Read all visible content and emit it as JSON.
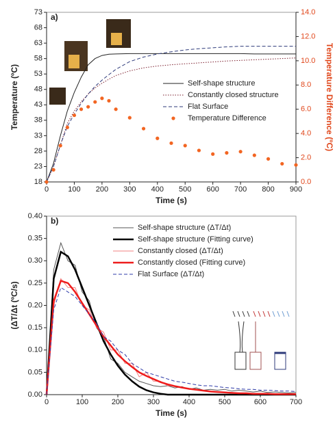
{
  "chart_data": [
    {
      "type": "line",
      "label": "a)",
      "xlabel": "Time (s)",
      "ylabel": "Temperature (ºC)",
      "y2label": "Temperature Difference (ºC)",
      "y2color": "#e0461a",
      "x": [
        0,
        25,
        50,
        75,
        100,
        125,
        150,
        175,
        200,
        225,
        250,
        300,
        350,
        400,
        450,
        500,
        550,
        600,
        650,
        700,
        750,
        800,
        850,
        900
      ],
      "xlim": [
        0,
        900
      ],
      "xticks": [
        0,
        100,
        200,
        300,
        400,
        500,
        600,
        700,
        800,
        900
      ],
      "ylim": [
        18,
        73
      ],
      "yticks": [
        18,
        23,
        28,
        33,
        38,
        43,
        48,
        53,
        58,
        63,
        68,
        73
      ],
      "y2lim": [
        0,
        14
      ],
      "y2ticks": [
        {
          "value": 0,
          "label": "0.0"
        },
        {
          "value": 2,
          "label": "2.0"
        },
        {
          "value": 4,
          "label": "4.0"
        },
        {
          "value": 6,
          "label": "6.0"
        },
        {
          "value": 8,
          "label": "8.0"
        },
        {
          "value": 10,
          "label": "10.0"
        },
        {
          "value": 12,
          "label": "12.0"
        },
        {
          "value": 14,
          "label": "14.0"
        }
      ],
      "series": [
        {
          "name": "Self-shape structure",
          "color": "#222222",
          "style": "solid",
          "width": 1,
          "values": [
            18,
            24,
            33,
            41,
            47,
            52,
            56,
            58,
            59,
            59.4,
            59.5,
            59.6,
            59.6,
            59.6,
            59.6,
            59.6,
            59.6,
            59.6,
            59.6,
            59.6,
            59.5,
            59.5,
            59.5,
            59.5
          ]
        },
        {
          "name": "Constantly closed structure",
          "color": "#7a1b2a",
          "style": "dotted",
          "width": 1,
          "values": [
            18,
            23,
            30,
            37,
            41,
            44,
            46.5,
            48.5,
            50,
            51.3,
            52.5,
            54,
            55,
            55.6,
            56,
            56.3,
            56.6,
            56.9,
            57.2,
            57.4,
            57.6,
            57.8,
            58,
            58.2
          ]
        },
        {
          "name": "Flat Surface",
          "color": "#2d3a7a",
          "style": "dashed",
          "width": 1,
          "values": [
            18,
            23,
            30,
            36,
            40,
            43.5,
            46.5,
            49,
            51,
            52.8,
            54.5,
            57,
            58.5,
            59.5,
            60.2,
            60.8,
            61.2,
            61.5,
            61.8,
            62,
            62,
            62,
            62,
            62
          ]
        },
        {
          "name": "Temperature Difference",
          "color": "#f26522",
          "style": "points",
          "axis": "y2",
          "values": [
            0,
            1.0,
            3.0,
            4.5,
            5.5,
            6.0,
            6.2,
            6.6,
            6.9,
            6.7,
            6.0,
            5.3,
            4.4,
            3.6,
            3.2,
            3.0,
            2.6,
            2.3,
            2.4,
            2.5,
            2.2,
            1.9,
            1.5,
            1.4
          ]
        }
      ]
    },
    {
      "type": "line",
      "label": "b)",
      "xlabel": "Time (s)",
      "ylabel": "(ΔT/Δt  (ºC/s)",
      "x": [
        0,
        20,
        40,
        60,
        80,
        100,
        120,
        140,
        160,
        180,
        200,
        220,
        240,
        260,
        280,
        300,
        320,
        340,
        360,
        380,
        400,
        420,
        440,
        460,
        480,
        500,
        520,
        540,
        560,
        580,
        600,
        620,
        640,
        660,
        680,
        700
      ],
      "xlim": [
        0,
        700
      ],
      "xticks": [
        0,
        100,
        200,
        300,
        400,
        500,
        600,
        700
      ],
      "ylim": [
        0,
        0.4
      ],
      "yticks": [
        {
          "value": 0,
          "label": "0.00"
        },
        {
          "value": 0.05,
          "label": "0.05"
        },
        {
          "value": 0.1,
          "label": "0.10"
        },
        {
          "value": 0.15,
          "label": "0.15"
        },
        {
          "value": 0.2,
          "label": "0.20"
        },
        {
          "value": 0.25,
          "label": "0.25"
        },
        {
          "value": 0.3,
          "label": "0.30"
        },
        {
          "value": 0.35,
          "label": "0.35"
        },
        {
          "value": 0.4,
          "label": "0.40"
        }
      ],
      "series": [
        {
          "name": "Self-shape structure (ΔT/Δt)",
          "color": "#555555",
          "style": "solid",
          "width": 1,
          "values": [
            0,
            0.28,
            0.34,
            0.3,
            0.29,
            0.23,
            0.21,
            0.15,
            0.13,
            0.08,
            0.07,
            0.05,
            0.04,
            0.03,
            0.025,
            0.02,
            0.018,
            0.02,
            0.015,
            0.018,
            0.012,
            0.015,
            0.01,
            0.012,
            0.01,
            0.012,
            0.008,
            0.01,
            0.008,
            0.006,
            0.008,
            0.005,
            0.006,
            0.005,
            0.004,
            0.005
          ]
        },
        {
          "name": "Self-shape structure (Fitting curve)",
          "color": "#000000",
          "style": "solid",
          "width": 2.5,
          "values": [
            0,
            0.26,
            0.32,
            0.31,
            0.28,
            0.24,
            0.2,
            0.16,
            0.12,
            0.09,
            0.065,
            0.045,
            0.03,
            0.018,
            0.01,
            0.005,
            0.002,
            0,
            0,
            0,
            0,
            0,
            0,
            0,
            0,
            0,
            0,
            0,
            0,
            0,
            0,
            0,
            0,
            0,
            0,
            0
          ]
        },
        {
          "name": "Constantly closed (ΔT/Δt)",
          "color": "#f08080",
          "style": "solid",
          "width": 1,
          "values": [
            0,
            0.2,
            0.26,
            0.24,
            0.24,
            0.2,
            0.19,
            0.15,
            0.14,
            0.1,
            0.1,
            0.07,
            0.07,
            0.04,
            0.05,
            0.03,
            0.03,
            0.02,
            0.02,
            0.015,
            0.013,
            0.01,
            0.01,
            0.008,
            0.006,
            0.005,
            0.004,
            0.004,
            0.003,
            0.002,
            0.002,
            0.002,
            0.001,
            0.001,
            0.001,
            0.001
          ]
        },
        {
          "name": "Constantly closed (Fitting curve)",
          "color": "#ee1c1c",
          "style": "solid",
          "width": 2.5,
          "values": [
            0,
            0.21,
            0.255,
            0.25,
            0.23,
            0.205,
            0.18,
            0.155,
            0.13,
            0.11,
            0.09,
            0.075,
            0.062,
            0.05,
            0.042,
            0.035,
            0.028,
            0.023,
            0.019,
            0.016,
            0.013,
            0.011,
            0.009,
            0.007,
            0.006,
            0.005,
            0.004,
            0.003,
            0.003,
            0.002,
            0.002,
            0.002,
            0.001,
            0.001,
            0.001,
            0.001
          ]
        },
        {
          "name": "Flat Surface (ΔT/Δt)",
          "color": "#2d3aa8",
          "style": "dashed",
          "width": 1,
          "values": [
            0,
            0.19,
            0.24,
            0.23,
            0.22,
            0.2,
            0.18,
            0.16,
            0.13,
            0.12,
            0.1,
            0.09,
            0.07,
            0.06,
            0.05,
            0.045,
            0.04,
            0.035,
            0.03,
            0.028,
            0.025,
            0.022,
            0.02,
            0.02,
            0.018,
            0.016,
            0.015,
            0.013,
            0.012,
            0.012,
            0.01,
            0.01,
            0.009,
            0.008,
            0.008,
            0.007
          ]
        }
      ]
    }
  ]
}
